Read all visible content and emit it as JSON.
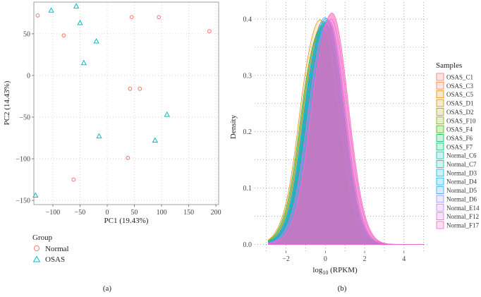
{
  "chart_data": [
    {
      "type": "scatter",
      "panel_label": "(a)",
      "xlabel": "PC1 (19.43%)",
      "ylabel": "PC2 (14.43%)",
      "xlim": [
        -135,
        205
      ],
      "ylim": [
        -155,
        88
      ],
      "xticks": [
        -100,
        -50,
        0,
        50,
        100,
        150,
        200
      ],
      "xtick_labels": [
        "−100",
        "−50",
        "0",
        "50",
        "100",
        "150",
        "200"
      ],
      "yticks": [
        -150,
        -100,
        -50,
        0,
        50
      ],
      "ytick_labels": [
        "−150",
        "−100",
        "−50",
        "0",
        "50"
      ],
      "grid": true,
      "legend_title": "Group",
      "legend_position": "bottom-left",
      "series": [
        {
          "name": "Normal",
          "marker": "circle",
          "color": "#F8766D",
          "points": [
            [
              -128,
              72
            ],
            [
              -80,
              48
            ],
            [
              45,
              70
            ],
            [
              95,
              70
            ],
            [
              188,
              53
            ],
            [
              42,
              -16
            ],
            [
              60,
              -16
            ],
            [
              38,
              -99
            ],
            [
              -62,
              -125
            ]
          ]
        },
        {
          "name": "OSAS",
          "marker": "triangle",
          "color": "#00BFC4",
          "points": [
            [
              -103,
              78
            ],
            [
              -57,
              83
            ],
            [
              -50,
              63
            ],
            [
              -20,
              41
            ],
            [
              -43,
              15
            ],
            [
              110,
              -47
            ],
            [
              -15,
              -73
            ],
            [
              88,
              -78
            ],
            [
              -132,
              -144
            ]
          ]
        }
      ]
    },
    {
      "type": "area",
      "panel_label": "(b)",
      "xlabel_main": "log",
      "xlabel_sub": "10",
      "xlabel_rest": " (RPKM)",
      "ylabel": "Density",
      "xlim": [
        -3.6,
        5.3
      ],
      "ylim": [
        -0.012,
        0.43
      ],
      "xticks": [
        -2,
        0,
        2,
        4
      ],
      "xtick_labels": [
        "−2",
        "0",
        "2",
        "4"
      ],
      "yticks": [
        0.0,
        0.1,
        0.2,
        0.3,
        0.4
      ],
      "ytick_labels": [
        "0.0",
        "0.1",
        "0.2",
        "0.3",
        "0.4"
      ],
      "grid": true,
      "legend_title": "Samples",
      "legend_position": "right",
      "series": [
        {
          "name": "OSAS_C1",
          "color": "#F8766D",
          "mu": 0.0,
          "peak": 0.392
        },
        {
          "name": "OSAS_C3",
          "color": "#EE8044",
          "mu": -0.1,
          "peak": 0.395
        },
        {
          "name": "OSAS_C5",
          "color": "#DE8C00",
          "mu": -0.25,
          "peak": 0.398
        },
        {
          "name": "OSAS_D1",
          "color": "#C49A00",
          "mu": -0.15,
          "peak": 0.385
        },
        {
          "name": "OSAS_D2",
          "color": "#A3A500",
          "mu": 0.05,
          "peak": 0.38
        },
        {
          "name": "OSAS_F10",
          "color": "#7CAE00",
          "mu": -0.05,
          "peak": 0.39
        },
        {
          "name": "OSAS_F4",
          "color": "#39B600",
          "mu": 0.1,
          "peak": 0.386
        },
        {
          "name": "OSAS_F6",
          "color": "#00BB4E",
          "mu": -0.2,
          "peak": 0.383
        },
        {
          "name": "OSAS_F7",
          "color": "#00BF7D",
          "mu": 0.0,
          "peak": 0.388
        },
        {
          "name": "Normal_C6",
          "color": "#00C1A3",
          "mu": 0.15,
          "peak": 0.395
        },
        {
          "name": "Normal_C7",
          "color": "#00BFC4",
          "mu": 0.05,
          "peak": 0.4
        },
        {
          "name": "Normal_D3",
          "color": "#00BAE0",
          "mu": -0.05,
          "peak": 0.393
        },
        {
          "name": "Normal_D4",
          "color": "#00B0F6",
          "mu": 0.1,
          "peak": 0.397
        },
        {
          "name": "Normal_D5",
          "color": "#35A2FF",
          "mu": 0.0,
          "peak": 0.402
        },
        {
          "name": "Normal_D6",
          "color": "#9590FF",
          "mu": 0.2,
          "peak": 0.396
        },
        {
          "name": "Normal_E14",
          "color": "#C77CFF",
          "mu": 0.3,
          "peak": 0.399
        },
        {
          "name": "Normal_F12",
          "color": "#E76BF3",
          "mu": 0.15,
          "peak": 0.394
        },
        {
          "name": "Normal_F17",
          "color": "#FF62BC",
          "mu": 0.35,
          "peak": 0.41
        }
      ]
    }
  ]
}
